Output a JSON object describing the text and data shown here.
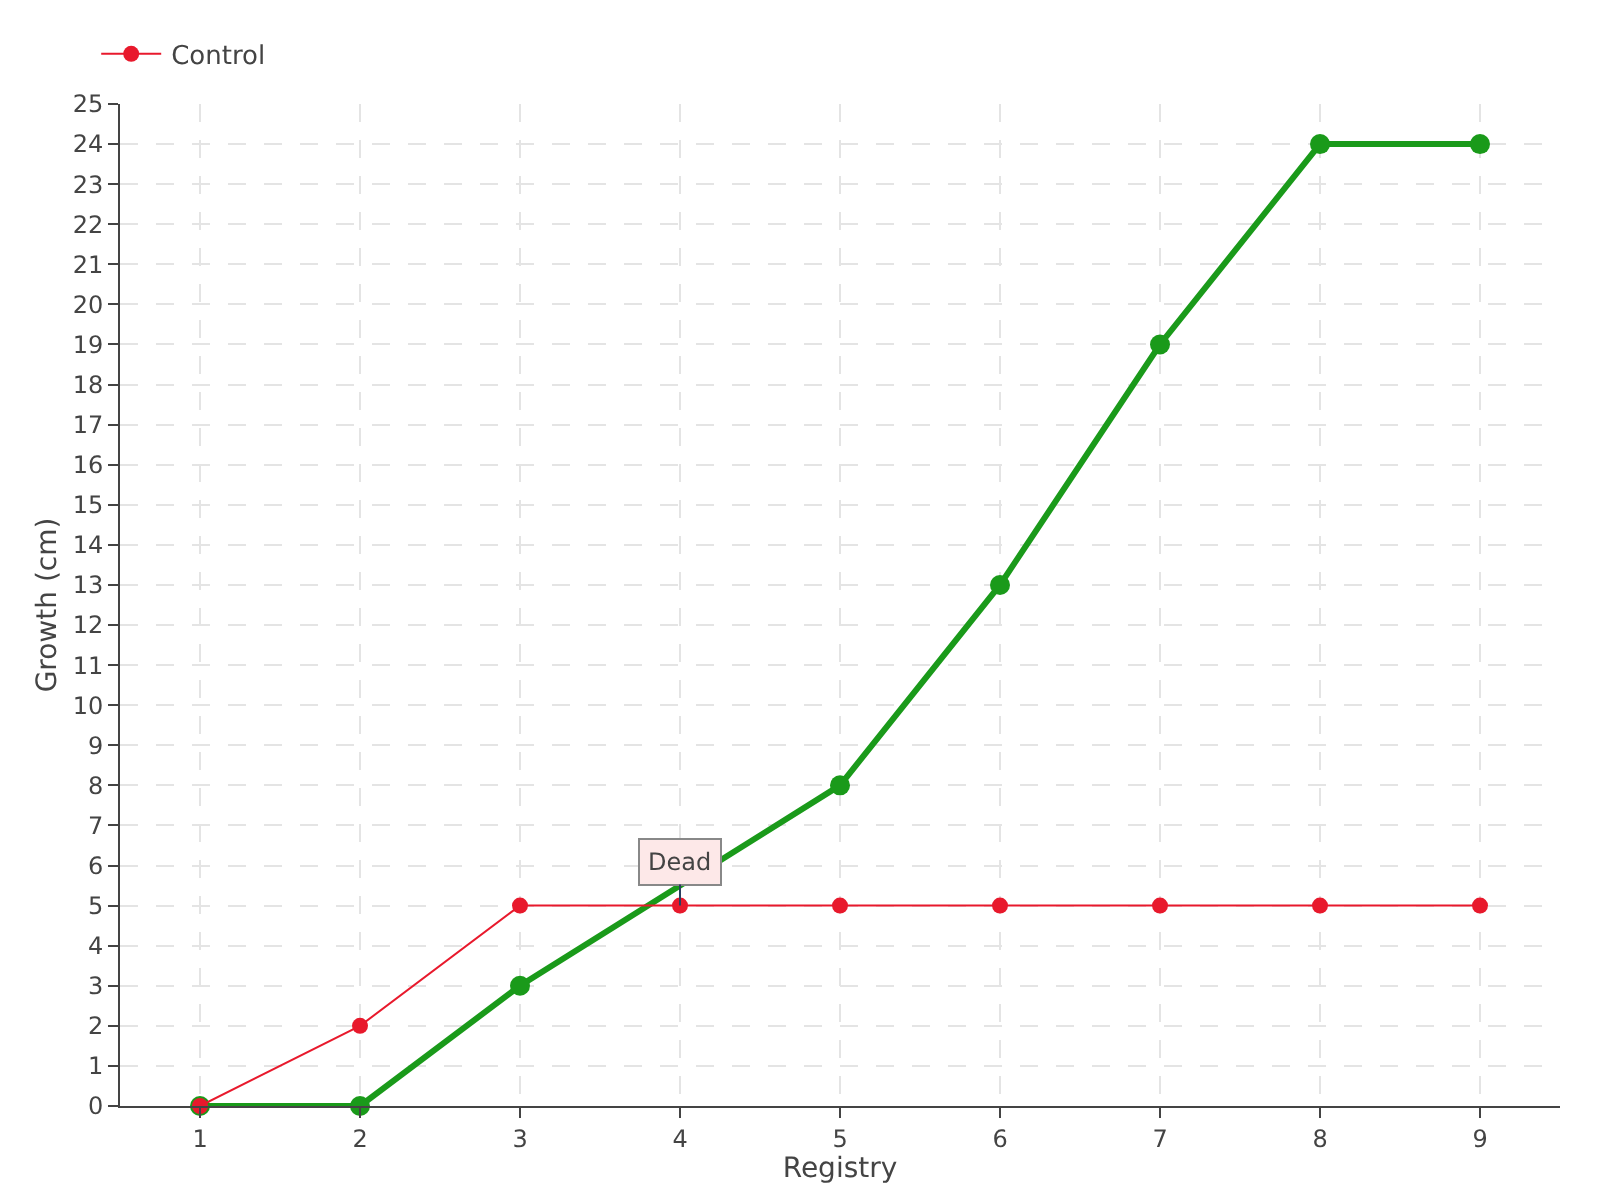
{
  "chart_data": {
    "type": "line",
    "xlabel": "Registry",
    "ylabel": "Growth (cm)",
    "categories": [
      "1",
      "2",
      "3",
      "4",
      "5",
      "6",
      "7",
      "8",
      "9"
    ],
    "series": [
      {
        "color": "#1a9a1a",
        "values": [
          0,
          0,
          3,
          null,
          8,
          13,
          19,
          24,
          24
        ]
      },
      {
        "name": "Control",
        "color": "#e8192c",
        "values": [
          0,
          2,
          5,
          5,
          5,
          5,
          5,
          5,
          5
        ]
      }
    ],
    "ylim": [
      0,
      25
    ],
    "yticks": [
      0,
      1,
      2,
      3,
      4,
      5,
      6,
      7,
      8,
      9,
      10,
      11,
      12,
      13,
      14,
      15,
      16,
      17,
      18,
      19,
      20,
      21,
      22,
      23,
      24,
      25
    ],
    "annotations": [
      {
        "text": "Dead",
        "x": "4",
        "y": 5
      }
    ],
    "grid": true,
    "legend": "top left",
    "marker": "circle",
    "line_style": "solid"
  }
}
